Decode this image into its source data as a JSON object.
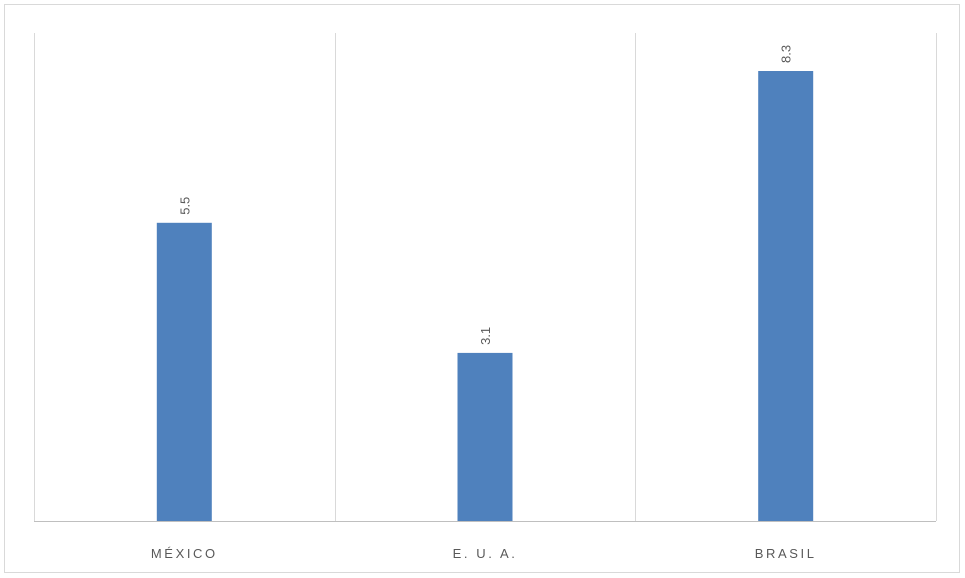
{
  "chart_data": {
    "type": "bar",
    "categories": [
      "MÉXICO",
      "E. U. A.",
      "BRASIL"
    ],
    "values": [
      5.5,
      3.1,
      8.3
    ],
    "title": "",
    "xlabel": "",
    "ylabel": "",
    "ylim": [
      0,
      9
    ],
    "grid": "vertical category separators",
    "legend": "none",
    "data_labels": "rotated above bars",
    "bar_color": "#4f81bd",
    "label_color": "#595959",
    "grid_color": "#d9d9d9"
  }
}
